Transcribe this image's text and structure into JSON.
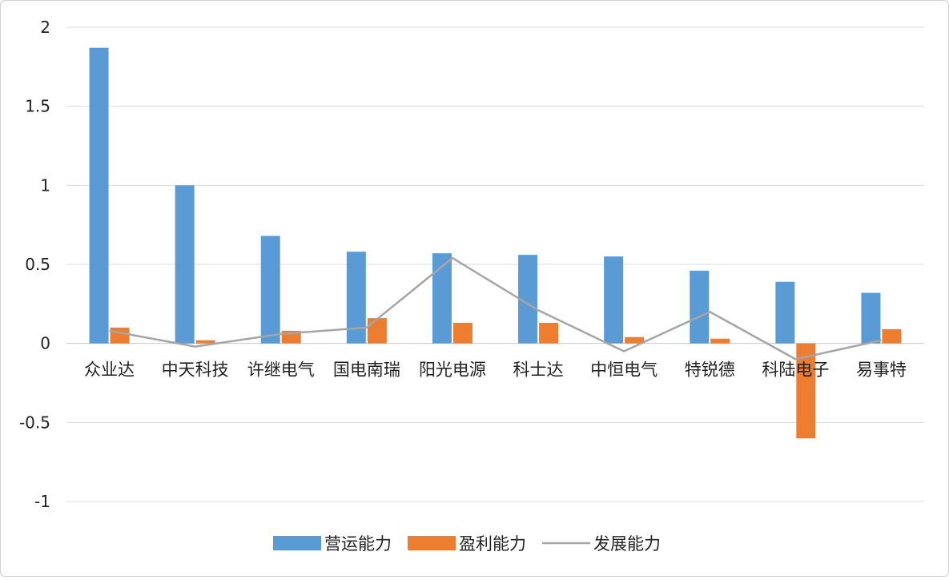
{
  "chart_data": {
    "type": "bar",
    "title": "",
    "xlabel": "",
    "ylabel": "",
    "categories": [
      "众业达",
      "中天科技",
      "许继电气",
      "国电南瑞",
      "阳光电源",
      "科士达",
      "中恒电气",
      "特锐德",
      "科陆电子",
      "易事特"
    ],
    "series": [
      {
        "name": "营运能力",
        "kind": "bar",
        "color": "#5B9BD5",
        "values": [
          1.87,
          1.0,
          0.68,
          0.58,
          0.57,
          0.56,
          0.55,
          0.46,
          0.39,
          0.32
        ]
      },
      {
        "name": "盈利能力",
        "kind": "bar",
        "color": "#ED7D31",
        "values": [
          0.1,
          0.02,
          0.08,
          0.16,
          0.13,
          0.13,
          0.04,
          0.03,
          -0.6,
          0.09
        ]
      },
      {
        "name": "发展能力",
        "kind": "line",
        "color": "#A5A5A5",
        "values": [
          0.08,
          -0.02,
          0.06,
          0.1,
          0.54,
          0.21,
          -0.05,
          0.2,
          -0.1,
          0.02
        ]
      }
    ],
    "ylim": [
      -1,
      2
    ],
    "yticks": [
      2,
      1.5,
      1,
      0.5,
      0,
      -0.5,
      -1
    ],
    "ytick_labels": [
      "2",
      "1.5",
      "1",
      "0.5",
      "0",
      "-0.5",
      "-1"
    ],
    "grid": true,
    "legend_position": "bottom"
  }
}
